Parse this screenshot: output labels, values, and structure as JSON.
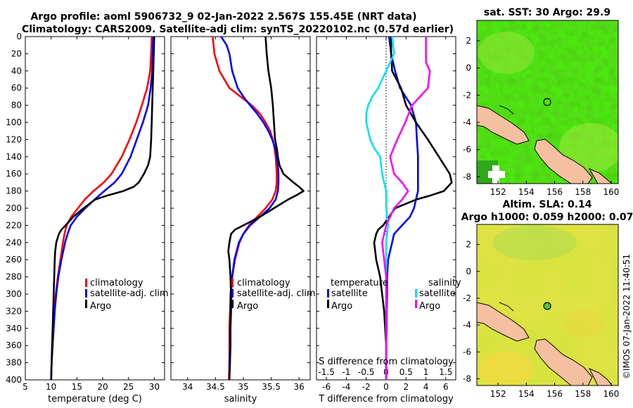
{
  "header": {
    "line1": "Argo profile: aoml 5906732_9 02-Jan-2022 2.567S 155.45E (NRT data)",
    "line2": "Climatology: CARS2009. Satellite-adj clim: synTS_20220102.nc (0.57d earlier)"
  },
  "sst_map": {
    "title": "sat. SST: 30 Argo: 29.9"
  },
  "sla_map": {
    "title1": "Altim. SLA: 0.14",
    "title2": "Argo h1000: 0.059 h2000: 0.07"
  },
  "stamp": "©IMOS 07-Jan-2022 11:40:51",
  "colors": {
    "climatology": "#ff0000",
    "satellite": "#0000ff",
    "argo": "#000000",
    "s_sat": "#00e5ee",
    "s_argo": "#ff00ff",
    "land": "#f5c0a0"
  },
  "chart_data": [
    {
      "type": "line",
      "id": "temperature",
      "xlabel": "temperature (deg C)",
      "ylabel": "",
      "xlim": [
        5,
        32
      ],
      "ylim": [
        400,
        0
      ],
      "xticks": [
        "5",
        "10",
        "15",
        "20",
        "25",
        "30"
      ],
      "yticks": [
        "0",
        "20",
        "40",
        "60",
        "80",
        "100",
        "120",
        "140",
        "160",
        "180",
        "200",
        "220",
        "240",
        "260",
        "280",
        "300",
        "320",
        "340",
        "360",
        "380",
        "400"
      ],
      "legend": [
        "climatology",
        "satellite-adj. clim",
        "Argo"
      ],
      "series": [
        {
          "name": "climatology",
          "color": "#ff0000",
          "depth": [
            0,
            20,
            40,
            60,
            80,
            100,
            120,
            140,
            160,
            170,
            180,
            190,
            200,
            210,
            220,
            230,
            240,
            260,
            280,
            300,
            320,
            340,
            360,
            380,
            400
          ],
          "values": [
            29.5,
            29.4,
            29.2,
            28.6,
            27.6,
            26.5,
            25.2,
            23.7,
            21.7,
            20.2,
            18.2,
            16.5,
            15.2,
            13.9,
            13.0,
            12.6,
            12.3,
            11.8,
            11.3,
            10.9,
            10.6,
            10.4,
            10.2,
            10.1,
            10.0
          ]
        },
        {
          "name": "satellite",
          "color": "#0000ff",
          "depth": [
            0,
            20,
            40,
            60,
            80,
            90,
            100,
            120,
            140,
            160,
            170,
            180,
            190,
            200,
            210,
            220,
            230,
            240,
            260,
            280,
            300,
            320,
            340,
            360,
            380,
            400
          ],
          "values": [
            29.8,
            29.7,
            29.6,
            29.3,
            28.8,
            28.3,
            27.8,
            26.6,
            25.4,
            23.7,
            22.3,
            20.3,
            18.4,
            16.6,
            15.0,
            13.8,
            13.2,
            12.7,
            12.0,
            11.4,
            11.0,
            10.7,
            10.5,
            10.3,
            10.1,
            10.0
          ]
        },
        {
          "name": "Argo",
          "color": "#000000",
          "depth": [
            0,
            20,
            40,
            60,
            80,
            100,
            120,
            140,
            150,
            160,
            170,
            175,
            180,
            185,
            190,
            200,
            210,
            220,
            225,
            230,
            240,
            250,
            260,
            280,
            300,
            320,
            340,
            360,
            380,
            400
          ],
          "values": [
            30.0,
            29.9,
            29.8,
            29.7,
            29.6,
            29.5,
            29.4,
            29.2,
            28.8,
            28.0,
            27.0,
            26.0,
            24.0,
            21.0,
            18.5,
            16.3,
            14.3,
            12.8,
            12.0,
            11.5,
            11.0,
            10.8,
            10.7,
            10.6,
            10.5,
            10.4,
            10.3,
            10.2,
            10.1,
            10.0
          ]
        }
      ]
    },
    {
      "type": "line",
      "id": "salinity",
      "xlabel": "salinity",
      "ylabel": "",
      "xlim": [
        33.7,
        36.2
      ],
      "ylim": [
        400,
        0
      ],
      "xticks": [
        "34",
        "34.5",
        "35",
        "35.5",
        "36"
      ],
      "legend": [
        "climatology",
        "satellite-adj. clim",
        "Argo"
      ],
      "series": [
        {
          "name": "climatology",
          "color": "#ff0000",
          "depth": [
            0,
            20,
            40,
            60,
            70,
            80,
            90,
            100,
            110,
            120,
            130,
            140,
            150,
            160,
            170,
            180,
            190,
            200,
            210,
            220,
            230,
            240,
            260,
            280,
            300,
            320,
            340,
            360,
            380,
            400
          ],
          "values": [
            34.45,
            34.48,
            34.57,
            34.75,
            34.95,
            35.15,
            35.3,
            35.4,
            35.48,
            35.53,
            35.56,
            35.58,
            35.59,
            35.6,
            35.6,
            35.58,
            35.52,
            35.4,
            35.25,
            35.1,
            35.0,
            34.93,
            34.85,
            34.8,
            34.77,
            34.76,
            34.75,
            34.75,
            34.75,
            34.74
          ]
        },
        {
          "name": "satellite",
          "color": "#0000ff",
          "depth": [
            0,
            10,
            20,
            40,
            60,
            70,
            80,
            90,
            100,
            110,
            120,
            130,
            140,
            150,
            160,
            170,
            180,
            190,
            200,
            210,
            220,
            230,
            240,
            260,
            280,
            300,
            320,
            340,
            360,
            380,
            400
          ],
          "values": [
            34.6,
            34.7,
            34.75,
            34.8,
            34.9,
            35.0,
            35.12,
            35.25,
            35.36,
            35.45,
            35.52,
            35.57,
            35.6,
            35.62,
            35.63,
            35.63,
            35.62,
            35.58,
            35.47,
            35.3,
            35.12,
            35.0,
            34.92,
            34.84,
            34.8,
            34.78,
            34.77,
            34.76,
            34.76,
            34.75,
            34.75
          ]
        },
        {
          "name": "Argo",
          "color": "#000000",
          "depth": [
            0,
            20,
            40,
            60,
            80,
            100,
            120,
            130,
            140,
            150,
            160,
            170,
            175,
            180,
            185,
            190,
            200,
            210,
            220,
            225,
            230,
            240,
            250,
            260,
            280,
            300,
            320,
            340,
            360,
            380,
            400
          ],
          "values": [
            35.4,
            35.42,
            35.45,
            35.5,
            35.53,
            35.55,
            35.57,
            35.6,
            35.62,
            35.65,
            35.72,
            35.9,
            36.0,
            36.08,
            35.95,
            35.8,
            35.55,
            35.3,
            35.0,
            34.85,
            34.78,
            34.75,
            34.73,
            34.75,
            34.77,
            34.78,
            34.78,
            34.77,
            34.77,
            34.76,
            34.75
          ]
        }
      ]
    },
    {
      "type": "line",
      "id": "differences",
      "xlabel": "T difference from climatology",
      "x2label": "S difference from climatology",
      "xlim": [
        -7,
        7
      ],
      "x2lim": [
        -1.75,
        1.75
      ],
      "ylim": [
        400,
        0
      ],
      "xticks": [
        "-6",
        "-4",
        "-2",
        "0",
        "2",
        "4",
        "6"
      ],
      "x2ticks": [
        "-1.5",
        "-1",
        "-0.5",
        "0",
        "0.5",
        "1",
        "1.5"
      ],
      "legend_left_title": "temperature",
      "legend_right_title": "salinity",
      "legend": [
        "satellite",
        "Argo"
      ],
      "series": [
        {
          "name": "T satellite",
          "color": "#0000ff",
          "axis": "T",
          "depth": [
            0,
            20,
            40,
            60,
            80,
            100,
            120,
            140,
            160,
            180,
            190,
            200,
            210,
            220,
            230,
            240,
            260,
            280,
            300,
            320,
            340,
            360,
            380,
            400
          ],
          "values": [
            0.3,
            0.5,
            0.9,
            1.4,
            2.5,
            3.0,
            3.1,
            3.2,
            3.2,
            3.2,
            3.0,
            2.8,
            2.4,
            1.6,
            0.8,
            0.6,
            0.2,
            0.1,
            0.1,
            0.05,
            0.05,
            0.0,
            0.0,
            0.0
          ]
        },
        {
          "name": "T Argo",
          "color": "#000000",
          "axis": "T",
          "depth": [
            0,
            20,
            40,
            60,
            80,
            100,
            120,
            140,
            160,
            170,
            180,
            185,
            190,
            200,
            210,
            220,
            225,
            230,
            240,
            260,
            280,
            300,
            320,
            340,
            360,
            380,
            400
          ],
          "values": [
            0.5,
            0.5,
            0.6,
            1.5,
            2.0,
            3.0,
            4.2,
            5.3,
            6.4,
            6.6,
            5.8,
            4.5,
            3.0,
            0.9,
            0.3,
            -0.3,
            -0.8,
            -1.0,
            -1.2,
            -1.0,
            -0.6,
            -0.4,
            -0.2,
            -0.1,
            0.0,
            0.0,
            0.0
          ]
        },
        {
          "name": "S satellite",
          "color": "#00e5ee",
          "axis": "S",
          "depth": [
            0,
            20,
            40,
            60,
            70,
            80,
            90,
            100,
            110,
            120,
            130,
            140,
            160,
            180,
            200,
            220,
            240,
            260,
            280,
            300,
            320,
            340,
            360,
            380,
            400
          ],
          "values": [
            0.15,
            0.2,
            0.0,
            -0.2,
            -0.35,
            -0.45,
            -0.5,
            -0.5,
            -0.45,
            -0.4,
            -0.3,
            -0.15,
            -0.1,
            0.0,
            0.0,
            0.05,
            0.0,
            0.0,
            0.0,
            0.0,
            0.0,
            0.0,
            0.0,
            0.0,
            0.0
          ]
        },
        {
          "name": "S Argo",
          "color": "#ff00ff",
          "axis": "S",
          "depth": [
            0,
            20,
            30,
            40,
            60,
            80,
            100,
            120,
            140,
            160,
            170,
            180,
            190,
            200,
            220,
            240,
            260,
            280,
            300,
            320,
            340,
            360,
            380,
            400
          ],
          "values": [
            1.0,
            1.0,
            1.0,
            1.1,
            1.05,
            0.65,
            0.48,
            0.28,
            0.1,
            0.2,
            0.4,
            0.55,
            0.4,
            0.2,
            0.0,
            -0.1,
            -0.05,
            0.0,
            0.0,
            0.0,
            0.0,
            0.0,
            0.0,
            0.0
          ]
        }
      ]
    },
    {
      "type": "heatmap",
      "id": "sst_map",
      "title": "sat. SST: 30 Argo: 29.9",
      "xlim": [
        150.5,
        160.5
      ],
      "ylim": [
        -8.5,
        3.5
      ],
      "xticks": [
        "152",
        "154",
        "156",
        "158",
        "160"
      ],
      "yticks": [
        "2",
        "0",
        "-2",
        "-4",
        "-6",
        "-8"
      ],
      "float_position": {
        "lon": 155.45,
        "lat": -2.567
      }
    },
    {
      "type": "heatmap",
      "id": "sla_map",
      "title": "Altim. SLA: 0.14",
      "xlim": [
        150.5,
        160.5
      ],
      "ylim": [
        -8.5,
        3.5
      ],
      "xticks": [
        "152",
        "154",
        "156",
        "158",
        "160"
      ],
      "yticks": [
        "2",
        "0",
        "-2",
        "-4",
        "-6",
        "-8"
      ],
      "float_position": {
        "lon": 155.45,
        "lat": -2.567
      }
    }
  ]
}
